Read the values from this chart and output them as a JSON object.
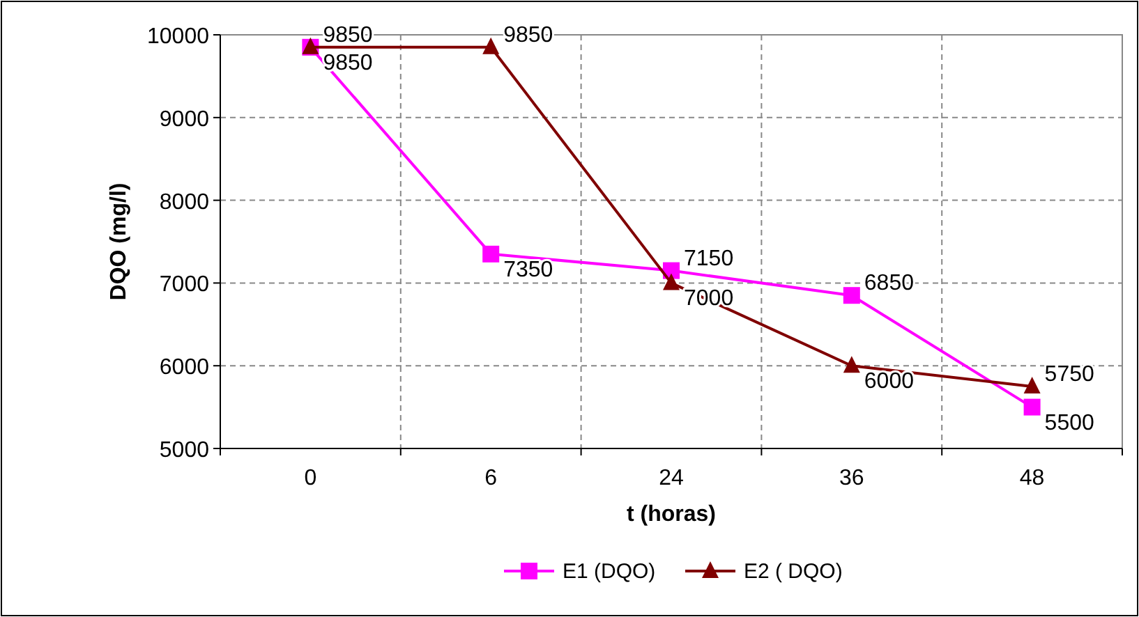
{
  "chart_data": {
    "type": "line",
    "xlabel": "t (horas)",
    "ylabel": "DQO (mg/l)",
    "categories": [
      "0",
      "6",
      "24",
      "36",
      "48"
    ],
    "series": [
      {
        "name": "E1 (DQO)",
        "color": "#ff00ff",
        "marker": "square",
        "values": [
          9850,
          7350,
          7150,
          6850,
          5500
        ]
      },
      {
        "name": "E2 ( DQO)",
        "color": "#800000",
        "marker": "triangle",
        "values": [
          9850,
          9850,
          7000,
          6000,
          5750
        ]
      }
    ],
    "ylim": [
      5000,
      10000
    ],
    "yticks": [
      5000,
      6000,
      7000,
      8000,
      9000,
      10000
    ],
    "grid": true,
    "legend": "bottom",
    "data_labels": true,
    "line_style": "solid"
  }
}
